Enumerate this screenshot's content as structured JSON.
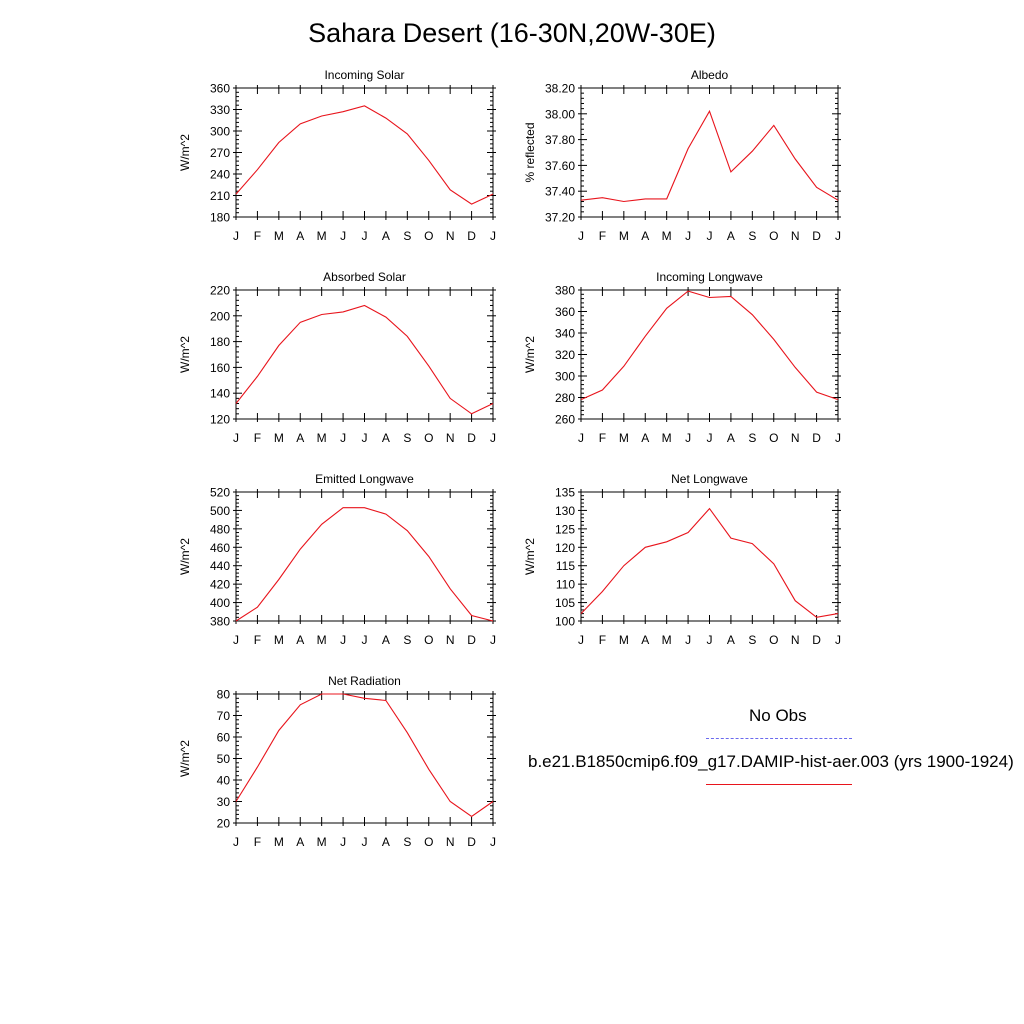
{
  "title": "Sahara Desert (16-30N,20W-30E)",
  "colors": {
    "model_line": "#e8141c",
    "obs_line": "#6a6aee",
    "axis": "#000000"
  },
  "legend": {
    "obs_label": "No Obs",
    "model_label": "b.e21.B1850cmip6.f09_g17.DAMIP-hist-aer.003 (yrs 1900-1924)"
  },
  "chart_data": [
    {
      "type": "line",
      "title": "Incoming Solar",
      "ylabel": "W/m^2",
      "categories": [
        "J",
        "F",
        "M",
        "A",
        "M",
        "J",
        "J",
        "A",
        "S",
        "O",
        "N",
        "D",
        "J"
      ],
      "ylim": [
        180,
        360
      ],
      "yticks": [
        "180",
        "210",
        "240",
        "270",
        "300",
        "330",
        "360"
      ],
      "series": [
        {
          "values": [
            212,
            246,
            284,
            310,
            321,
            327,
            335,
            318,
            296,
            259,
            218,
            198,
            212
          ]
        }
      ]
    },
    {
      "type": "line",
      "title": "Albedo",
      "ylabel": "% reflected",
      "categories": [
        "J",
        "F",
        "M",
        "A",
        "M",
        "J",
        "J",
        "A",
        "S",
        "O",
        "N",
        "D",
        "J"
      ],
      "ylim": [
        37.2,
        38.2
      ],
      "yticks": [
        "37.20",
        "37.40",
        "37.60",
        "37.80",
        "38.00",
        "38.20"
      ],
      "series": [
        {
          "values": [
            37.33,
            37.35,
            37.32,
            37.34,
            37.34,
            37.73,
            38.02,
            37.55,
            37.71,
            37.91,
            37.65,
            37.43,
            37.33
          ]
        }
      ]
    },
    {
      "type": "line",
      "title": "Absorbed Solar",
      "ylabel": "W/m^2",
      "categories": [
        "J",
        "F",
        "M",
        "A",
        "M",
        "J",
        "J",
        "A",
        "S",
        "O",
        "N",
        "D",
        "J"
      ],
      "ylim": [
        120,
        220
      ],
      "yticks": [
        "120",
        "140",
        "160",
        "180",
        "200",
        "220"
      ],
      "series": [
        {
          "values": [
            132,
            153,
            177,
            195,
            201,
            203,
            208,
            199,
            184,
            161,
            136,
            124,
            132
          ]
        }
      ]
    },
    {
      "type": "line",
      "title": "Incoming Longwave",
      "ylabel": "W/m^2",
      "categories": [
        "J",
        "F",
        "M",
        "A",
        "M",
        "J",
        "J",
        "A",
        "S",
        "O",
        "N",
        "D",
        "J"
      ],
      "ylim": [
        260,
        380
      ],
      "yticks": [
        "260",
        "280",
        "300",
        "320",
        "340",
        "360",
        "380"
      ],
      "series": [
        {
          "values": [
            278,
            287,
            309,
            337,
            363,
            379,
            373,
            374,
            357,
            334,
            308,
            285,
            278
          ]
        }
      ]
    },
    {
      "type": "line",
      "title": "Emitted Longwave",
      "ylabel": "W/m^2",
      "categories": [
        "J",
        "F",
        "M",
        "A",
        "M",
        "J",
        "J",
        "A",
        "S",
        "O",
        "N",
        "D",
        "J"
      ],
      "ylim": [
        380,
        520
      ],
      "yticks": [
        "380",
        "400",
        "420",
        "440",
        "460",
        "480",
        "500",
        "520"
      ],
      "series": [
        {
          "values": [
            380,
            395,
            425,
            458,
            485,
            503,
            503,
            496,
            478,
            450,
            415,
            386,
            380
          ]
        }
      ]
    },
    {
      "type": "line",
      "title": "Net Longwave",
      "ylabel": "W/m^2",
      "categories": [
        "J",
        "F",
        "M",
        "A",
        "M",
        "J",
        "J",
        "A",
        "S",
        "O",
        "N",
        "D",
        "J"
      ],
      "ylim": [
        100,
        135
      ],
      "yticks": [
        "100",
        "105",
        "110",
        "115",
        "120",
        "125",
        "130",
        "135"
      ],
      "series": [
        {
          "values": [
            102,
            108,
            115,
            120,
            121.5,
            124,
            130.5,
            122.5,
            121,
            115.5,
            105.5,
            101,
            102
          ]
        }
      ]
    },
    {
      "type": "line",
      "title": "Net Radiation",
      "ylabel": "W/m^2",
      "categories": [
        "J",
        "F",
        "M",
        "A",
        "M",
        "J",
        "J",
        "A",
        "S",
        "O",
        "N",
        "D",
        "J"
      ],
      "ylim": [
        20,
        80
      ],
      "yticks": [
        "20",
        "30",
        "40",
        "50",
        "60",
        "70",
        "80"
      ],
      "series": [
        {
          "values": [
            30,
            46,
            63,
            75,
            80,
            80,
            78,
            77,
            62,
            45,
            30,
            23,
            30
          ]
        }
      ]
    }
  ]
}
